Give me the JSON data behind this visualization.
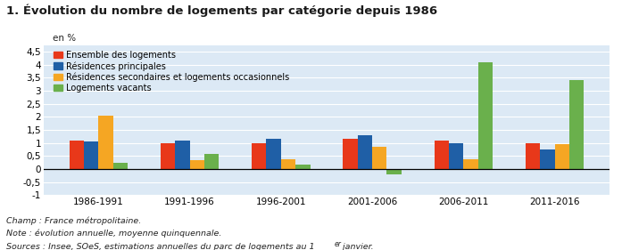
{
  "title": "1. Évolution du nombre de logements par catégorie depuis 1986",
  "ylabel": "en %",
  "categories": [
    "1986-1991",
    "1991-1996",
    "1996-2001",
    "2001-2006",
    "2006-2011",
    "2011-2016"
  ],
  "series_labels": [
    "Ensemble des logements",
    "Résidences principales",
    "Résidences secondaires et logements occasionnels",
    "Logements vacants"
  ],
  "series_values": [
    [
      1.1,
      1.0,
      1.0,
      1.15,
      1.1,
      1.0
    ],
    [
      1.05,
      1.1,
      1.15,
      1.28,
      0.97,
      0.75
    ],
    [
      2.05,
      0.33,
      0.38,
      0.85,
      0.37,
      0.95
    ],
    [
      0.22,
      0.58,
      0.15,
      -0.2,
      4.1,
      3.4
    ]
  ],
  "colors": [
    "#E8381A",
    "#1F5FA6",
    "#F5A623",
    "#6AB04C"
  ],
  "ylim": [
    -1.0,
    4.75
  ],
  "yticks": [
    -1.0,
    -0.5,
    0.0,
    0.5,
    1.0,
    1.5,
    2.0,
    2.5,
    3.0,
    3.5,
    4.0,
    4.5
  ],
  "note1": "Champ : France métropolitaine.",
  "note2": "Note : évolution annuelle, moyenne quinquennale.",
  "note3": "Sources : Insee, SOeS, estimations annuelles du parc de logements au 1",
  "note3_super": "er",
  "note3_end": " janvier.",
  "background_color": "#dce9f5",
  "grid_color": "#ffffff",
  "bar_width": 0.16
}
